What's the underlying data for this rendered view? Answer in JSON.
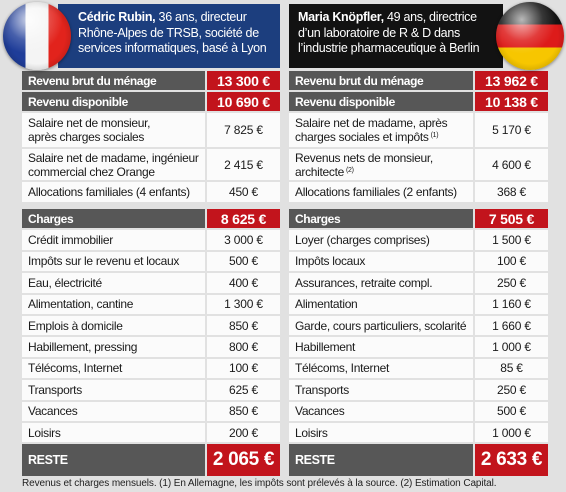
{
  "colors": {
    "hdr-left": "#1c3e7e",
    "hdr-right": "#121212",
    "dark": "#575757",
    "red": "#c2141c"
  },
  "left": {
    "flag_icon": "france-flag-icon",
    "header": {
      "name": "Cédric Rubin,",
      "line1": "36 ans, directeur",
      "line2": "Rhône-Alpes de TRSB, société de",
      "line3": "services informatiques, basé à Lyon"
    },
    "revenu_brut": {
      "label": "Revenu brut du ménage",
      "value": "13 300 €"
    },
    "revenu_disponible": {
      "label": "Revenu disponible",
      "value": "10 690 €"
    },
    "income": [
      {
        "lines": [
          "Salaire net de monsieur,",
          "après charges sociales"
        ],
        "value": "7 825 €"
      },
      {
        "lines": [
          "Salaire net de madame, ingénieur",
          "commercial chez Orange"
        ],
        "value": "2 415 €"
      },
      {
        "lines": [
          "Allocations familiales (4 enfants)"
        ],
        "value": "450 €"
      }
    ],
    "charges": {
      "label": "Charges",
      "value": "8 625 €"
    },
    "expenses": [
      {
        "label": "Crédit immobilier",
        "value": "3 000 €"
      },
      {
        "label": "Impôts sur le revenu et locaux",
        "value": "500 €"
      },
      {
        "label": "Eau, électricité",
        "value": "400 €"
      },
      {
        "label": "Alimentation, cantine",
        "value": "1 300 €"
      },
      {
        "label": "Emplois à domicile",
        "value": "850 €"
      },
      {
        "label": "Habillement, pressing",
        "value": "800 €"
      },
      {
        "label": "Télécoms, Internet",
        "value": "100 €"
      },
      {
        "label": "Transports",
        "value": "625 €"
      },
      {
        "label": "Vacances",
        "value": "850 €"
      },
      {
        "label": "Loisirs",
        "value": "200 €"
      }
    ],
    "reste": {
      "label": "RESTE",
      "value": "2 065 €"
    }
  },
  "right": {
    "flag_icon": "germany-flag-icon",
    "header": {
      "name": "Maria Knöpfler,",
      "line1": "49 ans, directrice",
      "line2": "d’un laboratoire de R & D dans",
      "line3": "l’industrie pharmaceutique à Berlin"
    },
    "revenu_brut": {
      "label": "Revenu brut du ménage",
      "value": "13 962 €"
    },
    "revenu_disponible": {
      "label": "Revenu disponible",
      "value": "10 138 €"
    },
    "income": [
      {
        "lines": [
          "Salaire net de madame, après",
          "charges sociales et impôts"
        ],
        "note": "(1)",
        "value": "5 170 €"
      },
      {
        "lines": [
          "Revenus nets de monsieur,",
          "architecte"
        ],
        "note": "(2)",
        "value": "4 600 €"
      },
      {
        "lines": [
          "Allocations familiales (2 enfants)"
        ],
        "value": "368 €"
      }
    ],
    "charges": {
      "label": "Charges",
      "value": "7 505 €"
    },
    "expenses": [
      {
        "label": "Loyer (charges comprises)",
        "value": "1 500 €"
      },
      {
        "label": "Impôts locaux",
        "value": "100 €"
      },
      {
        "label": "Assurances, retraite compl.",
        "value": "250 €"
      },
      {
        "label": "Alimentation",
        "value": "1 160 €"
      },
      {
        "label": "Garde, cours particuliers, scolarité",
        "value": "1 660 €"
      },
      {
        "label": "Habillement",
        "value": "1 000 €"
      },
      {
        "label": "Télécoms, Internet",
        "value": "85 €"
      },
      {
        "label": "Transports",
        "value": "250 €"
      },
      {
        "label": "Vacances",
        "value": "500 €"
      },
      {
        "label": "Loisirs",
        "value": "1 000 €"
      }
    ],
    "reste": {
      "label": "RESTE",
      "value": "2 633 €"
    }
  },
  "footer": "Revenus et charges mensuels. (1) En Allemagne, les impôts sont prélevés à la source. (2) Estimation Capital."
}
